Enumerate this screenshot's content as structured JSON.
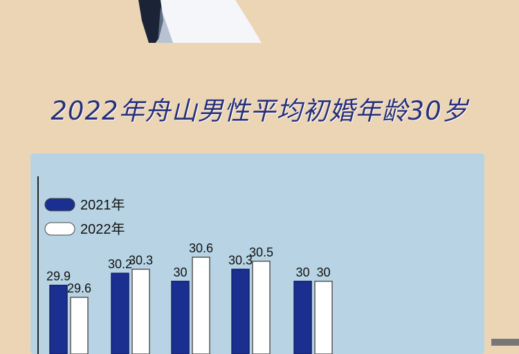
{
  "title": "2022年舟山男性平均初婚年龄30岁",
  "chart_data": {
    "type": "bar",
    "title": "2022年舟山男性平均初婚年龄30岁",
    "categories": [
      "",
      "",
      "",
      "",
      ""
    ],
    "series": [
      {
        "name": "2021年",
        "values": [
          29.9,
          30.2,
          30,
          30.3,
          30
        ],
        "color": "#1a2f8f"
      },
      {
        "name": "2022年",
        "values": [
          29.6,
          30.3,
          30.6,
          30.5,
          30
        ],
        "color": "#ffffff"
      }
    ],
    "data_labels": [
      [
        "29.9",
        "30.2",
        "30",
        "30.3",
        "30"
      ],
      [
        "29.6",
        "30.3",
        "30.6",
        "30.5",
        "30"
      ]
    ],
    "legend": "top-left",
    "grid": false
  }
}
